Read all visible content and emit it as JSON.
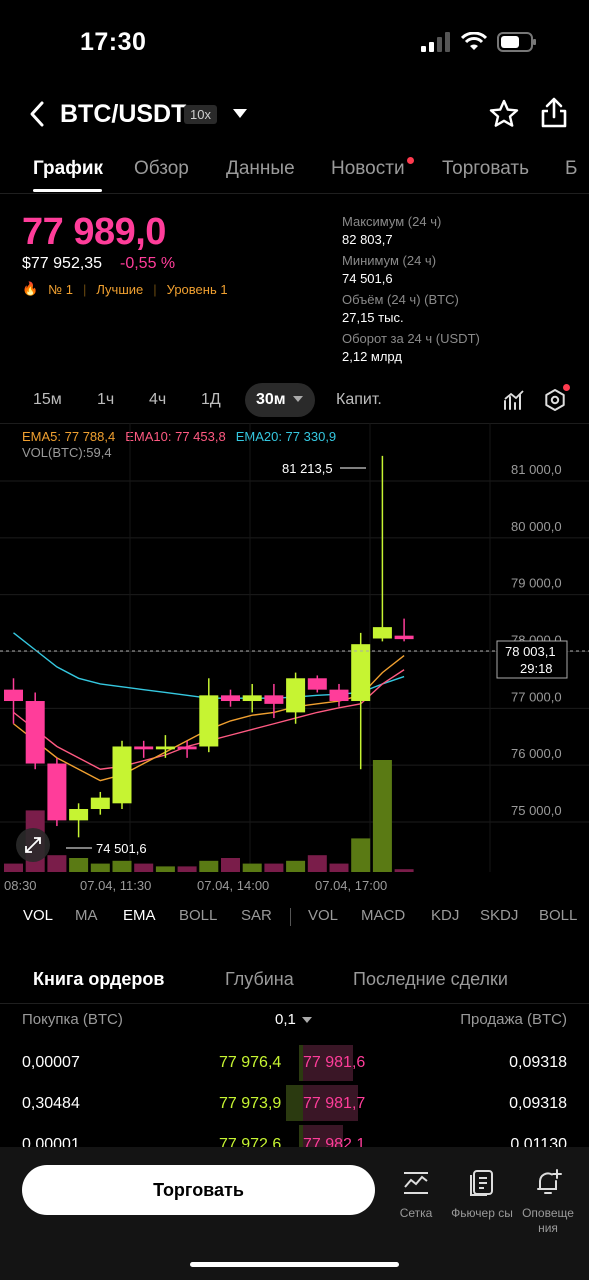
{
  "status_bar": {
    "time": "17:30"
  },
  "header": {
    "pair": "BTC/USDT",
    "leverage": "10x"
  },
  "tabs": [
    {
      "label": "График",
      "active": true
    },
    {
      "label": "Обзор"
    },
    {
      "label": "Данные"
    },
    {
      "label": "Новости",
      "has_dot": true
    },
    {
      "label": "Торговать"
    },
    {
      "label": "Б"
    }
  ],
  "price": {
    "last": "77 989,0",
    "usd": "$77 952,35",
    "change": "-0,55 %",
    "rank": "№ 1",
    "tag_best": "Лучшие",
    "tag_level": "Уровень 1"
  },
  "stats": [
    {
      "label": "Максимум (24 ч)",
      "value": "82 803,7"
    },
    {
      "label": "Минимум (24 ч)",
      "value": "74 501,6"
    },
    {
      "label": "Объём (24 ч) (BTC)",
      "value": "27,15 тыс."
    },
    {
      "label": "Оборот за 24 ч (USDT)",
      "value": "2,12 млрд"
    }
  ],
  "timeframes": [
    "15м",
    "1ч",
    "4ч",
    "1Д",
    "30м",
    "Капит."
  ],
  "indicators": {
    "ema5": "EMA5: 77 788,4",
    "ema10": "EMA10: 77 453,8",
    "ema20": "EMA20: 77 330,9",
    "vol": "VOL(BTC):59,4"
  },
  "chart_data": {
    "type": "candlestick",
    "y_axis_ticks": [
      "81 000,0",
      "80 000,0",
      "79 000,0",
      "78 000,0",
      "77 000,0",
      "76 000,0",
      "75 000,0"
    ],
    "x_axis_ticks": [
      "08:30",
      "07.04, 11:30",
      "07.04, 14:00",
      "07.04, 17:00"
    ],
    "high_marker": "81 213,5",
    "low_marker": "74 501,6",
    "current_price": "78 003,1",
    "countdown": "29:18",
    "candles": [
      [
        77100,
        77300,
        76500,
        76900
      ],
      [
        76900,
        77050,
        75700,
        75800
      ],
      [
        75800,
        75900,
        74700,
        74800
      ],
      [
        74800,
        75100,
        74501.6,
        75000
      ],
      [
        75000,
        75300,
        74900,
        75200
      ],
      [
        75100,
        76200,
        75000,
        76100
      ],
      [
        76100,
        76200,
        75900,
        76050
      ],
      [
        76050,
        76300,
        75900,
        76100
      ],
      [
        76100,
        76200,
        75900,
        76050
      ],
      [
        76100,
        77300,
        76000,
        77000
      ],
      [
        77000,
        77100,
        76800,
        76900
      ],
      [
        76900,
        77200,
        76700,
        77000
      ],
      [
        77000,
        77200,
        76600,
        76850
      ],
      [
        76700,
        77400,
        76500,
        77300
      ],
      [
        77300,
        77350,
        77050,
        77100
      ],
      [
        77100,
        77200,
        76800,
        76900
      ],
      [
        76900,
        78100,
        75700,
        77900
      ],
      [
        78000,
        81213.5,
        77950,
        78200
      ],
      [
        78050,
        78350,
        77950,
        77989
      ]
    ],
    "volumes": [
      3,
      22,
      6,
      5,
      3,
      4,
      3,
      2,
      2,
      4,
      5,
      3,
      3,
      4,
      6,
      3,
      12,
      40,
      1
    ],
    "ema5": [
      76500,
      76200,
      75900,
      75700,
      75500,
      75600,
      75800,
      76000,
      76200,
      76400,
      76550,
      76650,
      76700,
      76800,
      76850,
      76900,
      77000,
      77400,
      77700
    ],
    "ema10": [
      76700,
      76400,
      76100,
      75900,
      75700,
      75750,
      75850,
      75950,
      76100,
      76200,
      76300,
      76400,
      76500,
      76600,
      76700,
      76780,
      76850,
      77200,
      77450
    ],
    "ema20": [
      78100,
      77800,
      77500,
      77300,
      77200,
      77150,
      77100,
      77050,
      77000,
      76950,
      76950,
      76950,
      76950,
      76970,
      77000,
      77020,
      77050,
      77200,
      77330
    ]
  },
  "indicator_bar": [
    "VOL",
    "MA",
    "EMA",
    "BOLL",
    "SAR",
    "VOL",
    "MACD",
    "KDJ",
    "SKDJ",
    "BOLL"
  ],
  "order_book": {
    "tabs": [
      "Книга ордеров",
      "Глубина",
      "Последние сделки"
    ],
    "buy_header": "Покупка (BTC)",
    "step": "0,1",
    "sell_header": "Продажа (BTC)",
    "rows": [
      {
        "buy_qty": "0,00007",
        "bid": "77 976,4",
        "ask": "77 981,6",
        "sell_qty": "0,09318"
      },
      {
        "buy_qty": "0,30484",
        "bid": "77 973,9",
        "ask": "77 981,7",
        "sell_qty": "0,09318"
      },
      {
        "buy_qty": "0,00001",
        "bid": "77 972,6",
        "ask": "77 982,1",
        "sell_qty": "0,01130"
      }
    ]
  },
  "bottom_bar": {
    "trade_label": "Торговать",
    "grid_label": "Сетка",
    "futures_label": "Фьючер сы",
    "alerts_label": "Оповеще ния"
  },
  "colors": {
    "up": "#c6f432",
    "down": "#ff3d9a",
    "ema5": "#f0a030",
    "ema10": "#ff5a82",
    "ema20": "#35c8e0"
  }
}
